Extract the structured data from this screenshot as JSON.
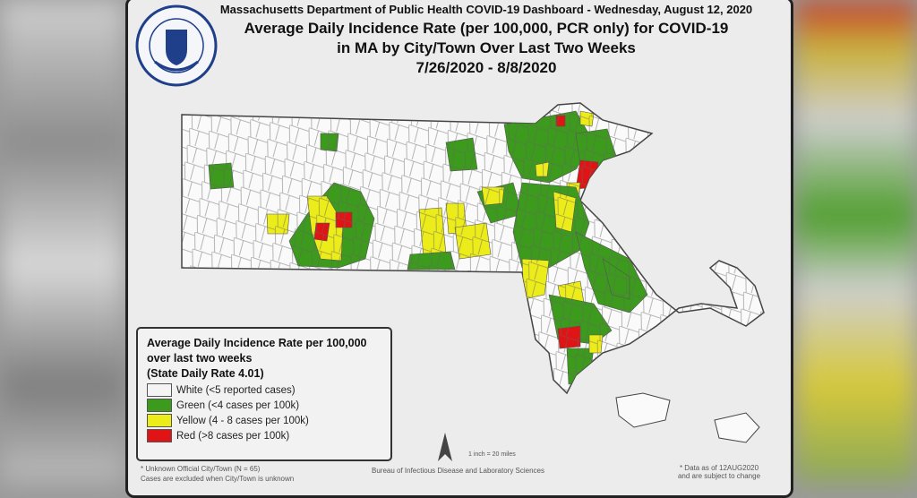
{
  "header": {
    "line1": "Massachusetts Department of Public Health COVID-19 Dashboard - Wednesday, August 12, 2020",
    "line2": "Average Daily Incidence Rate (per 100,000, PCR only) for COVID-19",
    "line3": "in MA by City/Town Over Last Two Weeks",
    "line4": "7/26/2020 - 8/8/2020"
  },
  "seal": {
    "text": "COMMONWEALTH OF MASSACHUSETTS · DEPARTMENT OF PUBLIC HEALTH"
  },
  "legend": {
    "title1": "Average Daily Incidence Rate per 100,000",
    "title2": "over last two weeks",
    "title3": "(State Daily Rate 4.01)",
    "items": [
      {
        "label": "White (<5 reported cases)",
        "color": "#f4f4f4"
      },
      {
        "label": "Green (<4 cases per 100k)",
        "color": "#3c9a1c"
      },
      {
        "label": "Yellow (4 - 8 cases per 100k)",
        "color": "#ecec1a"
      },
      {
        "label": "Red (>8 cases per 100k)",
        "color": "#e01414"
      }
    ]
  },
  "map": {
    "scale": "1 inch = 20 miles",
    "north_arrow": "north-arrow-icon"
  },
  "footer": {
    "unknown1": "* Unknown Official City/Town (N = 65)",
    "unknown2": "Cases are excluded when City/Town is unknown",
    "bureau": "Bureau of Infectious Disease and Laboratory Sciences",
    "asof1": "* Data as of 12AUG2020",
    "asof2": "and are subject to change"
  }
}
